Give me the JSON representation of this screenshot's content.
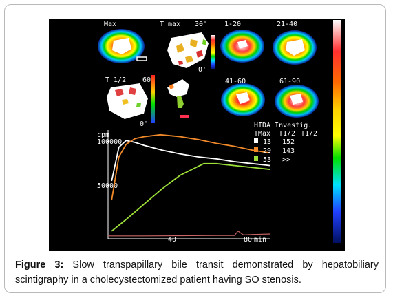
{
  "frames": {
    "row1": [
      {
        "label": "Max"
      },
      {
        "label": "T max",
        "range_max": "30'",
        "range_min": "0'"
      },
      {
        "label": "1-20"
      },
      {
        "label": "21-40"
      }
    ],
    "row2": [
      {
        "label": "T 1/2",
        "range_max": "60'",
        "range_min": "0'"
      },
      {
        "label": ""
      },
      {
        "label": "41-60"
      },
      {
        "label": "61-90"
      }
    ]
  },
  "legend": {
    "title": "HIDA Investig.",
    "col_tmax": "TMax",
    "col_t12_a": "T1/2",
    "col_t12_b": "T1/2",
    "rows": [
      {
        "tmax": "13",
        "t12": "152",
        "color": "#ffffff"
      },
      {
        "tmax": "29",
        "t12": "143",
        "color": "#f28a2a"
      },
      {
        "tmax": "53",
        "t12": ">>",
        "color": "#9ee03a"
      }
    ]
  },
  "chart": {
    "y_unit": "cpm",
    "y_tick_top": "100000",
    "y_tick_mid": "50000",
    "x_tick_1": "40",
    "x_tick_2": "80",
    "x_unit": "min"
  },
  "chart_data": {
    "type": "line",
    "ylabel": "cpm",
    "xlabel": "min",
    "x_ticks": [
      40,
      80
    ],
    "y_ticks": [
      50000,
      100000
    ],
    "xlim": [
      0,
      90
    ],
    "ylim": [
      0,
      110000
    ],
    "series": [
      {
        "color": "#ffffff",
        "x": [
          2,
          6,
          10,
          15,
          20,
          30,
          40,
          50,
          60,
          70,
          80,
          90
        ],
        "y": [
          60000,
          95000,
          102000,
          100000,
          97000,
          92000,
          88000,
          85000,
          83000,
          80000,
          78000,
          76000
        ]
      },
      {
        "color": "#f28a2a",
        "x": [
          2,
          6,
          10,
          15,
          20,
          29,
          40,
          50,
          60,
          70,
          80,
          90
        ],
        "y": [
          40000,
          85000,
          98000,
          104000,
          106000,
          108000,
          106000,
          103000,
          99000,
          96000,
          92000,
          89000
        ]
      },
      {
        "color": "#9ee03a",
        "x": [
          2,
          10,
          20,
          30,
          40,
          53,
          60,
          70,
          80,
          90
        ],
        "y": [
          8000,
          20000,
          36000,
          52000,
          66000,
          78000,
          78000,
          76000,
          74000,
          72000
        ]
      },
      {
        "color": "#c86464",
        "x": [
          0,
          20,
          40,
          60,
          70,
          72,
          75,
          80,
          90
        ],
        "y": [
          3000,
          3000,
          3200,
          3500,
          3500,
          8000,
          4000,
          4500,
          5000
        ]
      }
    ]
  },
  "caption": {
    "label": "Figure 3:",
    "text": "Slow transpapillary bile transit demonstrated by hepatobiliary scintigraphy in a cholecystectomized patient having SO stenosis."
  },
  "colors": {
    "colorbar": [
      "#ffffff",
      "#ff3030",
      "#ffb000",
      "#ffff00",
      "#00e000",
      "#00e0ff",
      "#2040ff",
      "#001060"
    ]
  }
}
